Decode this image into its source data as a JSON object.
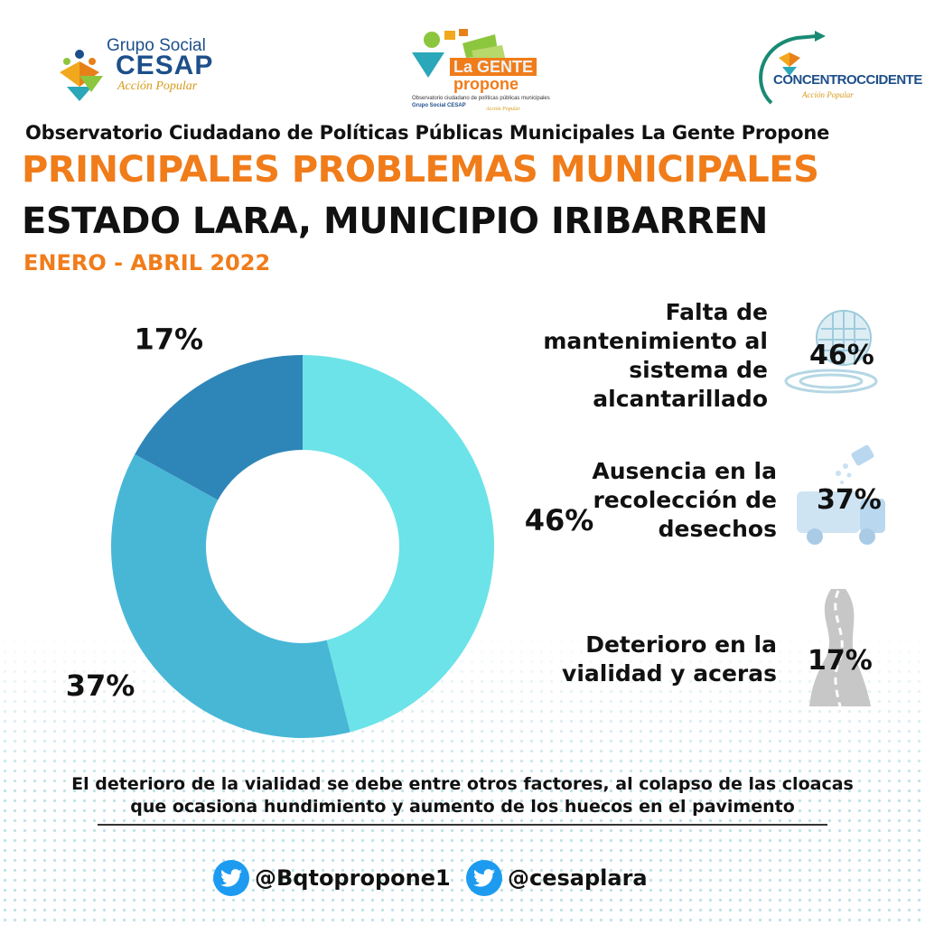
{
  "logos": {
    "cesap": {
      "line1": "Grupo Social",
      "line2": "CESAP",
      "line3": "Acción Popular"
    },
    "la_gente_propone": {
      "line1": "La GENTE",
      "line2": "propone",
      "line3": "Observatorio ciudadano de políticas públicas municipales",
      "line4": "Grupo Social CESAP",
      "line5": "Acción Popular"
    },
    "concentroccidente": {
      "line1": "CONCENTROCCIDENTE",
      "line2": "Acción Popular"
    }
  },
  "header": {
    "observatorio": "Observatorio Ciudadano de Políticas Públicas Municipales La Gente Propone",
    "title": "PRINCIPALES PROBLEMAS MUNICIPALES",
    "subtitle": "ESTADO LARA, MUNICIPIO IRIBARREN",
    "period": "ENERO - ABRIL 2022"
  },
  "chart_data": {
    "type": "pie",
    "donut": true,
    "unit": "%",
    "categories": [
      "Falta de mantenimiento al sistema de alcantarillado",
      "Ausencia en la recolección de desechos",
      "Deterioro en la vialidad y aceras"
    ],
    "values": [
      46,
      37,
      17
    ],
    "value_labels": [
      "46%",
      "37%",
      "17%"
    ],
    "colors": [
      "#6ce3e8",
      "#48b7d6",
      "#2e86b8"
    ],
    "legend_placement": "right"
  },
  "legend": [
    {
      "label_lines": [
        "Falta de",
        "mantenimiento al",
        "sistema de",
        "alcantarillado"
      ],
      "value": "46%",
      "icon": "sewer-icon"
    },
    {
      "label_lines": [
        "Ausencia en la",
        "recolección de",
        "desechos"
      ],
      "value": "37%",
      "icon": "garbage-truck-icon"
    },
    {
      "label_lines": [
        "Deterioro en la",
        "vialidad y aceras"
      ],
      "value": "17%",
      "icon": "road-icon"
    }
  ],
  "footer": {
    "note_line1": "El deterioro de la vialidad se debe entre otros factores, al colapso de las cloacas",
    "note_line2": "que ocasiona hundimiento y aumento de los huecos en el pavimento",
    "social": [
      {
        "platform": "twitter-icon",
        "handle": "@Bqtopropone1"
      },
      {
        "platform": "twitter-icon",
        "handle": "@cesaplara"
      }
    ],
    "twitter_color": "#1d9bf0"
  }
}
